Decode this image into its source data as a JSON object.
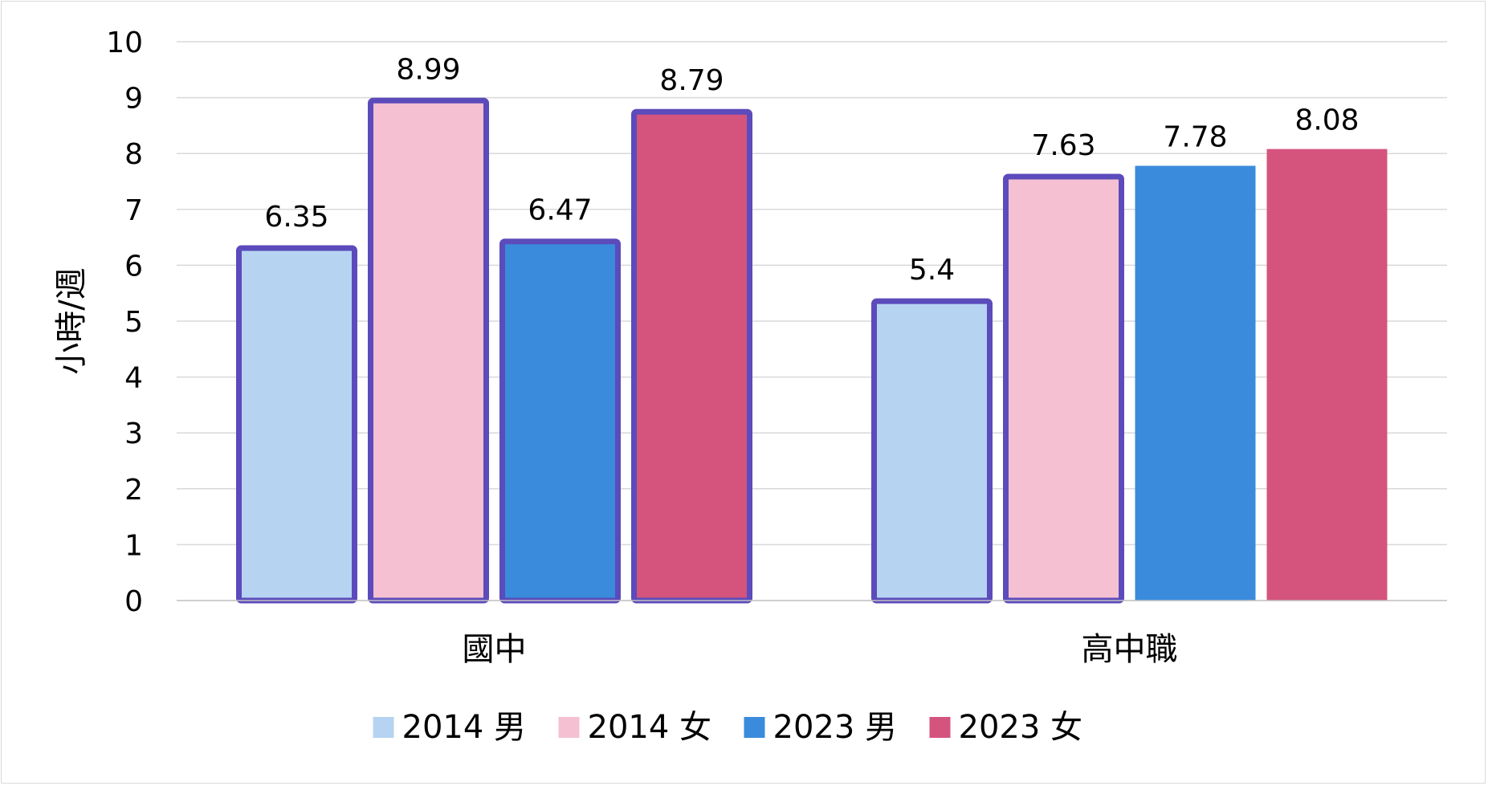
{
  "chart_data": {
    "type": "bar",
    "categories": [
      "國中",
      "高中職"
    ],
    "series": [
      {
        "name": "2014 男",
        "values": [
          6.35,
          5.4
        ],
        "color": "#b7d3f2"
      },
      {
        "name": "2014 女",
        "values": [
          8.99,
          7.63
        ],
        "color": "#f4c0d2"
      },
      {
        "name": "2023 男",
        "values": [
          6.47,
          7.78
        ],
        "color": "#3a8bdc"
      },
      {
        "name": "2023 女",
        "values": [
          8.79,
          8.08
        ],
        "color": "#d4547e"
      }
    ],
    "highlight_border_color": "#5b4bbb",
    "highlighted_bars": [
      [
        true,
        true,
        true,
        true
      ],
      [
        true,
        true,
        false,
        false
      ]
    ],
    "title": "",
    "xlabel": "",
    "ylabel": "小時/週",
    "ylim": [
      0,
      10
    ],
    "yticks": [
      0,
      1,
      2,
      3,
      4,
      5,
      6,
      7,
      8,
      9,
      10
    ],
    "grid": true,
    "legend_position": "bottom"
  }
}
